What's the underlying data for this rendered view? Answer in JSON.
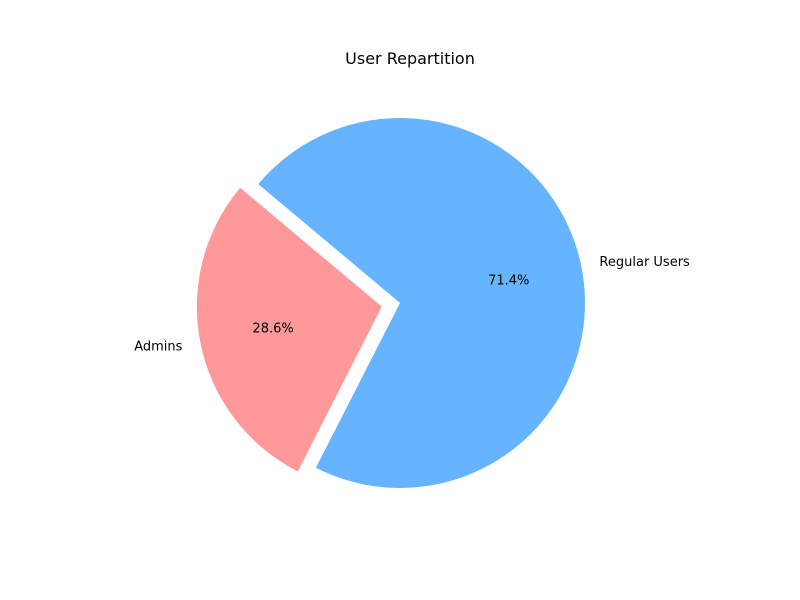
{
  "chart_data": {
    "type": "pie",
    "title": "User Repartition",
    "start_angle_deg": 140,
    "slices": [
      {
        "label": "Admins",
        "value": 28.6,
        "pct_label": "28.6%",
        "color": "#ff9999",
        "exploded": true
      },
      {
        "label": "Regular Users",
        "value": 71.4,
        "pct_label": "71.4%",
        "color": "#66b3ff",
        "exploded": false
      }
    ]
  }
}
